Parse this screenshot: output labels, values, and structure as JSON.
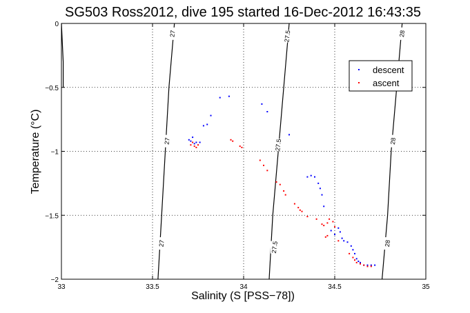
{
  "chart_data": {
    "type": "scatter",
    "title": "SG503 Ross2012, dive 195 started 16-Dec-2012 16:43:35",
    "xlabel": "Salinity (S [PSS−78])",
    "ylabel": "Temperature (°C)",
    "xlim": [
      33,
      35
    ],
    "ylim": [
      -2,
      0
    ],
    "x_ticks": [
      33,
      33.5,
      34,
      34.5,
      35
    ],
    "x_tick_labels": [
      "33",
      "33.5",
      "34",
      "34.5",
      "35"
    ],
    "y_ticks": [
      0,
      -0.5,
      -1,
      -1.5,
      -2
    ],
    "y_tick_labels": [
      "0",
      "−0.5",
      "−1",
      "−1.5",
      "−2"
    ],
    "grid": true,
    "legend_position": "top-right",
    "contours": [
      {
        "label": "27",
        "points": [
          [
            33.0,
            0.0
          ],
          [
            33.01,
            -0.3
          ],
          [
            33.01,
            -0.5
          ]
        ],
        "label_positions": []
      },
      {
        "label": "27",
        "points": [
          [
            33.62,
            0.0
          ],
          [
            33.59,
            -0.5
          ],
          [
            33.57,
            -1.0
          ],
          [
            33.55,
            -1.5
          ],
          [
            33.53,
            -2.0
          ]
        ],
        "label_positions": [
          [
            33.61,
            -0.08
          ],
          [
            33.58,
            -0.92
          ],
          [
            33.55,
            -1.72
          ]
        ]
      },
      {
        "label": "27.5",
        "points": [
          [
            34.25,
            0.0
          ],
          [
            34.22,
            -0.5
          ],
          [
            34.19,
            -1.0
          ],
          [
            34.16,
            -1.5
          ],
          [
            34.14,
            -2.0
          ]
        ],
        "label_positions": [
          [
            34.24,
            -0.1
          ],
          [
            34.19,
            -0.95
          ],
          [
            34.17,
            -1.75
          ]
        ]
      },
      {
        "label": "28",
        "points": [
          [
            34.87,
            0.0
          ],
          [
            34.84,
            -0.5
          ],
          [
            34.81,
            -1.0
          ],
          [
            34.79,
            -1.5
          ],
          [
            34.76,
            -2.0
          ]
        ],
        "label_positions": [
          [
            34.87,
            -0.08
          ],
          [
            34.82,
            -0.92
          ],
          [
            34.79,
            -1.72
          ]
        ]
      }
    ],
    "series": [
      {
        "name": "descent",
        "color": "#0000ff",
        "points": [
          [
            33.7,
            -0.91
          ],
          [
            33.71,
            -0.92
          ],
          [
            33.72,
            -0.89
          ],
          [
            33.73,
            -0.94
          ],
          [
            33.74,
            -0.93
          ],
          [
            33.76,
            -0.93
          ],
          [
            33.78,
            -0.8
          ],
          [
            33.8,
            -0.79
          ],
          [
            33.82,
            -0.72
          ],
          [
            33.87,
            -0.58
          ],
          [
            33.92,
            -0.57
          ],
          [
            34.1,
            -0.63
          ],
          [
            34.13,
            -0.69
          ],
          [
            34.25,
            -0.87
          ],
          [
            34.35,
            -1.2
          ],
          [
            34.37,
            -1.19
          ],
          [
            34.39,
            -1.2
          ],
          [
            34.41,
            -1.25
          ],
          [
            34.42,
            -1.29
          ],
          [
            34.43,
            -1.34
          ],
          [
            34.44,
            -1.43
          ],
          [
            34.48,
            -1.62
          ],
          [
            34.5,
            -1.65
          ],
          [
            34.52,
            -1.6
          ],
          [
            34.53,
            -1.63
          ],
          [
            34.54,
            -1.68
          ],
          [
            34.55,
            -1.7
          ],
          [
            34.57,
            -1.71
          ],
          [
            34.59,
            -1.74
          ],
          [
            34.6,
            -1.77
          ],
          [
            34.61,
            -1.8
          ],
          [
            34.62,
            -1.84
          ],
          [
            34.63,
            -1.86
          ],
          [
            34.64,
            -1.87
          ],
          [
            34.66,
            -1.89
          ],
          [
            34.68,
            -1.89
          ],
          [
            34.7,
            -1.89
          ],
          [
            34.72,
            -1.89
          ]
        ]
      },
      {
        "name": "ascent",
        "color": "#ff0000",
        "points": [
          [
            33.71,
            -0.95
          ],
          [
            33.72,
            -0.93
          ],
          [
            33.73,
            -0.96
          ],
          [
            33.74,
            -0.97
          ],
          [
            33.75,
            -0.95
          ],
          [
            33.93,
            -0.91
          ],
          [
            33.94,
            -0.92
          ],
          [
            33.98,
            -0.96
          ],
          [
            33.99,
            -0.97
          ],
          [
            34.09,
            -1.07
          ],
          [
            34.11,
            -1.11
          ],
          [
            34.13,
            -1.15
          ],
          [
            34.18,
            -1.24
          ],
          [
            34.2,
            -1.26
          ],
          [
            34.22,
            -1.31
          ],
          [
            34.23,
            -1.34
          ],
          [
            34.28,
            -1.41
          ],
          [
            34.3,
            -1.44
          ],
          [
            34.31,
            -1.46
          ],
          [
            34.32,
            -1.47
          ],
          [
            34.35,
            -1.51
          ],
          [
            34.4,
            -1.53
          ],
          [
            34.43,
            -1.57
          ],
          [
            34.44,
            -1.58
          ],
          [
            34.46,
            -1.56
          ],
          [
            34.47,
            -1.53
          ],
          [
            34.49,
            -1.55
          ],
          [
            34.5,
            -1.59
          ],
          [
            34.45,
            -1.67
          ],
          [
            34.46,
            -1.66
          ],
          [
            34.52,
            -1.7
          ],
          [
            34.58,
            -1.8
          ],
          [
            34.6,
            -1.83
          ],
          [
            34.61,
            -1.85
          ],
          [
            34.62,
            -1.87
          ],
          [
            34.64,
            -1.88
          ],
          [
            34.66,
            -1.89
          ],
          [
            34.68,
            -1.9
          ],
          [
            34.7,
            -1.9
          ]
        ]
      }
    ]
  }
}
